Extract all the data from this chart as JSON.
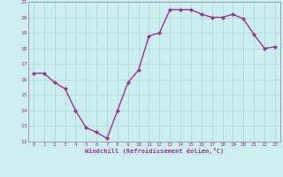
{
  "x": [
    0,
    1,
    2,
    3,
    4,
    5,
    6,
    7,
    8,
    9,
    10,
    11,
    12,
    13,
    14,
    15,
    16,
    17,
    18,
    19,
    20,
    21,
    22,
    23
  ],
  "y": [
    16.4,
    16.4,
    15.8,
    15.4,
    14.0,
    12.9,
    12.6,
    12.2,
    14.0,
    15.8,
    16.6,
    18.8,
    19.0,
    20.5,
    20.5,
    20.5,
    20.2,
    20.0,
    20.0,
    20.2,
    19.9,
    18.9,
    18.0,
    18.1
  ],
  "line_color": "#993399",
  "marker": "D",
  "marker_size": 2.0,
  "bg_color": "#cceeee",
  "grid_color": "#aadddd",
  "xlabel": "Windchill (Refroidissement éolien,°C)",
  "xlabel_color": "#993399",
  "tick_color": "#993399",
  "ylim": [
    12,
    21
  ],
  "yticks": [
    12,
    13,
    14,
    15,
    16,
    17,
    18,
    19,
    20,
    21
  ],
  "xticks": [
    0,
    1,
    2,
    3,
    4,
    5,
    6,
    7,
    8,
    9,
    10,
    11,
    12,
    13,
    14,
    15,
    16,
    17,
    18,
    19,
    20,
    21,
    22,
    23
  ],
  "line_width": 1.0
}
